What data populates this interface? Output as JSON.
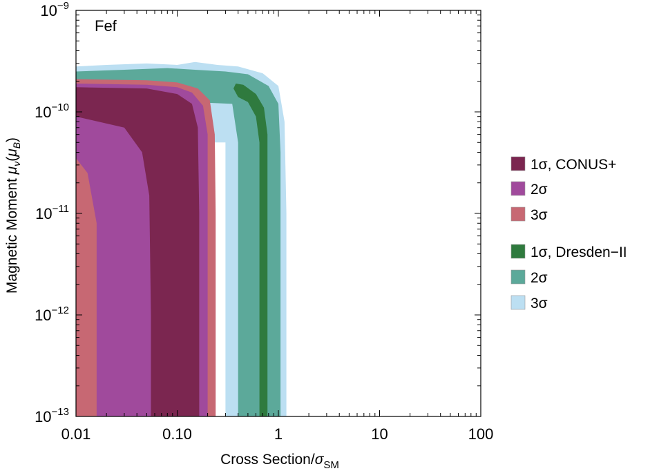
{
  "chart_data": {
    "type": "area",
    "panel_label": "Fef",
    "xlabel_main": "Cross Section/",
    "xlabel_sigma": "σ",
    "xlabel_sub": "SM",
    "ylabel": "Magnetic Moment μν(μB)",
    "xscale": "log",
    "yscale": "log",
    "xlim": [
      0.01,
      100
    ],
    "ylim": [
      1e-13,
      1e-09
    ],
    "x_ticks": [
      {
        "value": 0.01,
        "label": "0.01"
      },
      {
        "value": 0.1,
        "label": "0.10"
      },
      {
        "value": 1,
        "label": "1"
      },
      {
        "value": 10,
        "label": "10"
      },
      {
        "value": 100,
        "label": "100"
      }
    ],
    "y_ticks": [
      {
        "value": 1e-13,
        "label": "10",
        "exp": "−13"
      },
      {
        "value": 1e-12,
        "label": "10",
        "exp": "−12"
      },
      {
        "value": 1e-11,
        "label": "10",
        "exp": "−11"
      },
      {
        "value": 1e-10,
        "label": "10",
        "exp": "−10"
      },
      {
        "value": 1e-09,
        "label": "10",
        "exp": "−9"
      }
    ],
    "legend_position": "right",
    "legend": [
      {
        "label": "1σ, CONUS+",
        "color": "#7b2650"
      },
      {
        "label": "2σ",
        "color": "#a04a9c"
      },
      {
        "label": "3σ",
        "color": "#c76873"
      },
      {
        "label": "1σ, Dresden−II",
        "color": "#2f7a3e"
      },
      {
        "label": "2σ",
        "color": "#5ca99a"
      },
      {
        "label": "3σ",
        "color": "#bcdff2"
      }
    ],
    "series": [
      {
        "name": "Dresden-II 3σ",
        "color": "#bcdff2",
        "polygon": [
          [
            0.01,
            2.8e-10
          ],
          [
            0.02,
            2.9e-10
          ],
          [
            0.05,
            3e-10
          ],
          [
            0.1,
            2.9e-10
          ],
          [
            0.15,
            3.1e-10
          ],
          [
            0.25,
            2.9e-10
          ],
          [
            0.4,
            2.8e-10
          ],
          [
            0.7,
            2.4e-10
          ],
          [
            1.0,
            1.8e-10
          ],
          [
            1.15,
            8e-11
          ],
          [
            1.2,
            1e-11
          ],
          [
            1.2,
            1e-13
          ],
          [
            0.3,
            1e-13
          ],
          [
            0.3,
            1e-11
          ],
          [
            0.3,
            5e-11
          ],
          [
            0.01,
            5e-11
          ]
        ]
      },
      {
        "name": "Dresden-II 2σ",
        "color": "#5ca99a",
        "polygon": [
          [
            0.01,
            2.5e-10
          ],
          [
            0.03,
            2.6e-10
          ],
          [
            0.08,
            2.7e-10
          ],
          [
            0.15,
            2.6e-10
          ],
          [
            0.3,
            2.5e-10
          ],
          [
            0.5,
            2.35e-10
          ],
          [
            0.8,
            1.8e-10
          ],
          [
            1.0,
            1.2e-10
          ],
          [
            1.05,
            4e-11
          ],
          [
            1.05,
            1e-13
          ],
          [
            0.4,
            1e-13
          ],
          [
            0.4,
            1e-12
          ],
          [
            0.4,
            5e-11
          ],
          [
            0.35,
            1.2e-10
          ],
          [
            0.01,
            1.4e-10
          ]
        ]
      },
      {
        "name": "Dresden-II 1σ",
        "color": "#2f7a3e",
        "polygon": [
          [
            0.38,
            1.9e-10
          ],
          [
            0.45,
            1.85e-10
          ],
          [
            0.6,
            1.5e-10
          ],
          [
            0.72,
            1.1e-10
          ],
          [
            0.78,
            6e-11
          ],
          [
            0.78,
            1e-13
          ],
          [
            0.65,
            1e-13
          ],
          [
            0.65,
            5e-11
          ],
          [
            0.6,
            9e-11
          ],
          [
            0.5,
            1.25e-10
          ],
          [
            0.4,
            1.4e-10
          ],
          [
            0.36,
            1.7e-10
          ]
        ]
      },
      {
        "name": "CONUS+ 3σ",
        "color": "#c76873",
        "polygon": [
          [
            0.01,
            2.1e-10
          ],
          [
            0.05,
            2.05e-10
          ],
          [
            0.1,
            1.95e-10
          ],
          [
            0.16,
            1.7e-10
          ],
          [
            0.21,
            1.3e-10
          ],
          [
            0.235,
            6e-11
          ],
          [
            0.24,
            1e-11
          ],
          [
            0.24,
            1e-13
          ],
          [
            0.01,
            1e-13
          ]
        ]
      },
      {
        "name": "CONUS+ 2σ",
        "color": "#a04a9c",
        "polygon": [
          [
            0.01,
            1.9e-10
          ],
          [
            0.05,
            1.85e-10
          ],
          [
            0.1,
            1.75e-10
          ],
          [
            0.14,
            1.55e-10
          ],
          [
            0.18,
            1.15e-10
          ],
          [
            0.2,
            6e-11
          ],
          [
            0.2,
            1e-13
          ],
          [
            0.01,
            1e-13
          ]
        ]
      },
      {
        "name": "CONUS+ 1σ",
        "color": "#7b2650",
        "polygon": [
          [
            0.01,
            1.75e-10
          ],
          [
            0.05,
            1.7e-10
          ],
          [
            0.1,
            1.5e-10
          ],
          [
            0.14,
            1.2e-10
          ],
          [
            0.16,
            7e-11
          ],
          [
            0.165,
            1e-11
          ],
          [
            0.165,
            1e-13
          ],
          [
            0.01,
            1e-13
          ]
        ]
      },
      {
        "name": "CONUS+ 2σ inner",
        "color": "#a04a9c",
        "polygon": [
          [
            0.01,
            9e-11
          ],
          [
            0.03,
            7e-11
          ],
          [
            0.045,
            4e-11
          ],
          [
            0.053,
            1.5e-11
          ],
          [
            0.055,
            1e-12
          ],
          [
            0.055,
            1e-13
          ],
          [
            0.01,
            1e-13
          ]
        ]
      },
      {
        "name": "CONUS+ 3σ inner",
        "color": "#c76873",
        "polygon": [
          [
            0.01,
            3.5e-11
          ],
          [
            0.013,
            2.5e-11
          ],
          [
            0.016,
            8e-12
          ],
          [
            0.016,
            1e-13
          ],
          [
            0.01,
            1e-13
          ]
        ]
      }
    ]
  }
}
